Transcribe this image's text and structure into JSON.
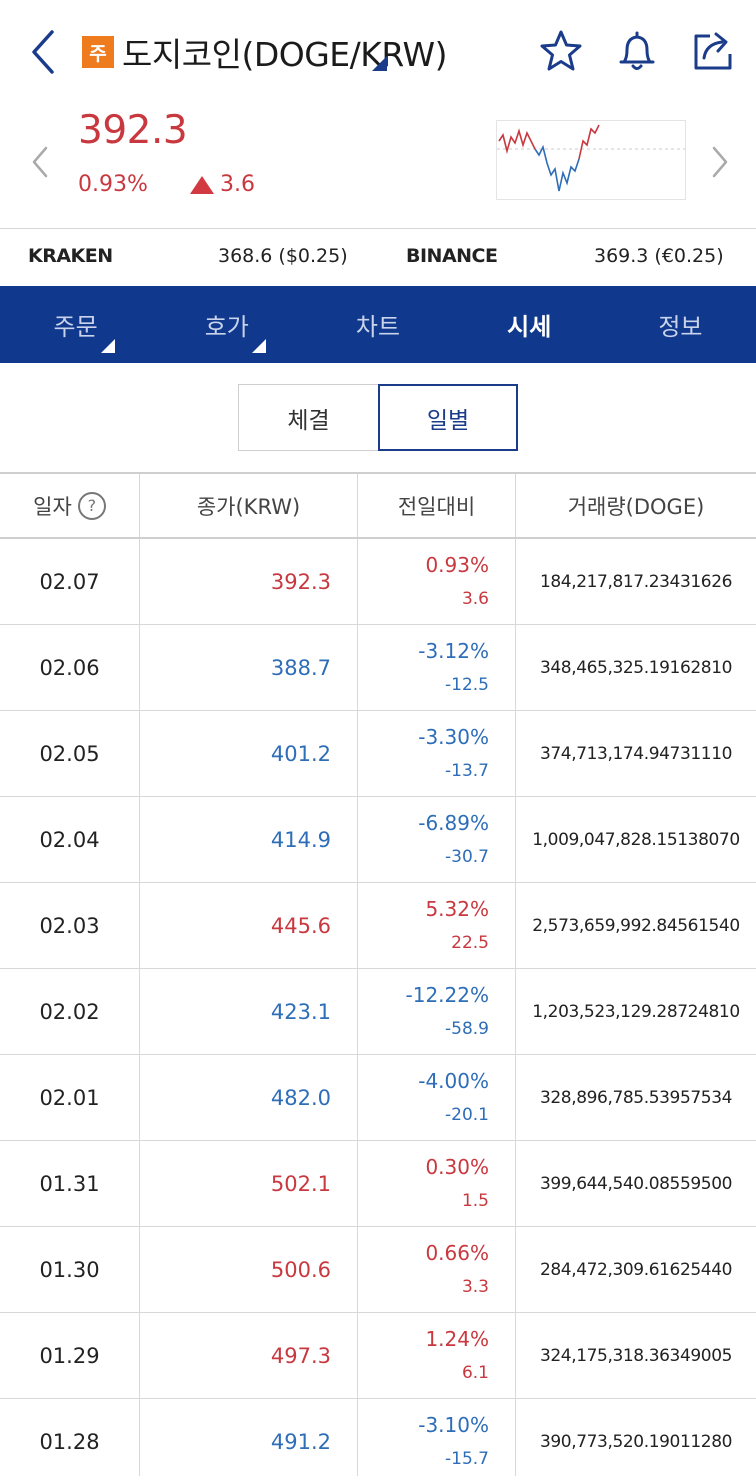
{
  "header": {
    "badge": "주",
    "title": "도지코인(DOGE/KRW)"
  },
  "price": {
    "current": "392.3",
    "change_pct": "0.93%",
    "change_abs": "3.6"
  },
  "exchanges": [
    {
      "name": "KRAKEN",
      "value": "368.6 ($0.25)"
    },
    {
      "name": "BINANCE",
      "value": "369.3 (€0.25)"
    }
  ],
  "tabs": [
    {
      "label": "주문"
    },
    {
      "label": "호가"
    },
    {
      "label": "차트"
    },
    {
      "label": "시세"
    },
    {
      "label": "정보"
    }
  ],
  "segments": [
    {
      "label": "체결"
    },
    {
      "label": "일별"
    }
  ],
  "table": {
    "headers": [
      "일자",
      "종가(KRW)",
      "전일대비",
      "거래량(DOGE)"
    ],
    "help_glyph": "?",
    "rows": [
      {
        "date": "02.07",
        "close": "392.3",
        "pct": "0.93%",
        "abs": "3.6",
        "volume": "184,217,817.23431626"
      },
      {
        "date": "02.06",
        "close": "388.7",
        "pct": "-3.12%",
        "abs": "-12.5",
        "volume": "348,465,325.19162810"
      },
      {
        "date": "02.05",
        "close": "401.2",
        "pct": "-3.30%",
        "abs": "-13.7",
        "volume": "374,713,174.94731110"
      },
      {
        "date": "02.04",
        "close": "414.9",
        "pct": "-6.89%",
        "abs": "-30.7",
        "volume": "1,009,047,828.15138070"
      },
      {
        "date": "02.03",
        "close": "445.6",
        "pct": "5.32%",
        "abs": "22.5",
        "volume": "2,573,659,992.84561540"
      },
      {
        "date": "02.02",
        "close": "423.1",
        "pct": "-12.22%",
        "abs": "-58.9",
        "volume": "1,203,523,129.28724810"
      },
      {
        "date": "02.01",
        "close": "482.0",
        "pct": "-4.00%",
        "abs": "-20.1",
        "volume": "328,896,785.53957534"
      },
      {
        "date": "01.31",
        "close": "502.1",
        "pct": "0.30%",
        "abs": "1.5",
        "volume": "399,644,540.08559500"
      },
      {
        "date": "01.30",
        "close": "500.6",
        "pct": "0.66%",
        "abs": "3.3",
        "volume": "284,472,309.61625440"
      },
      {
        "date": "01.29",
        "close": "497.3",
        "pct": "1.24%",
        "abs": "6.1",
        "volume": "324,175,318.36349005"
      },
      {
        "date": "01.28",
        "close": "491.2",
        "pct": "-3.10%",
        "abs": "-15.7",
        "volume": "390,773,520.19011280"
      }
    ]
  },
  "colors": {
    "up": "#c8383f",
    "down": "#2e6db8",
    "tab_bar": "#10398e",
    "badge": "#ef7b1f"
  }
}
